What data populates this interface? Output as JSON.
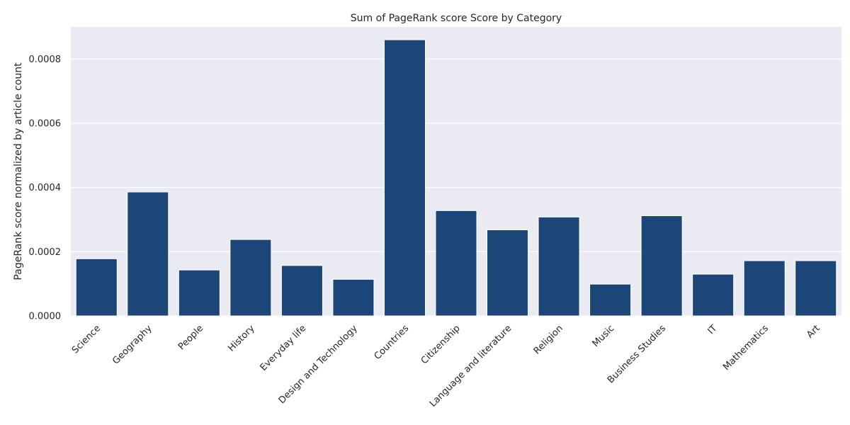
{
  "chart_data": {
    "type": "bar",
    "title": "Sum of PageRank score Score by Category",
    "xlabel": "",
    "ylabel": "PageRank score normalized by article count",
    "categories": [
      "Science",
      "Geography",
      "People",
      "History",
      "Everyday life",
      "Design and Technology",
      "Countries",
      "Citizenship",
      "Language and literature",
      "Religion",
      "Music",
      "Business Studies",
      "IT",
      "Mathematics",
      "Art"
    ],
    "values": [
      0.000178,
      0.000386,
      0.000143,
      0.000238,
      0.000157,
      0.000114,
      0.00086,
      0.000328,
      0.000268,
      0.000308,
      9.9e-05,
      0.000312,
      0.00013,
      0.000172,
      0.000172
    ],
    "ylim": [
      0,
      0.0009
    ],
    "yticks": [
      0.0,
      0.0002,
      0.0004,
      0.0006,
      0.0008
    ],
    "ytick_labels": [
      "0.0000",
      "0.0002",
      "0.0004",
      "0.0006",
      "0.0008"
    ],
    "grid": true,
    "colors": {
      "bar": "#1c4578",
      "plot_background": "#eaeaf2",
      "grid": "#ffffff",
      "text": "#262626"
    }
  }
}
